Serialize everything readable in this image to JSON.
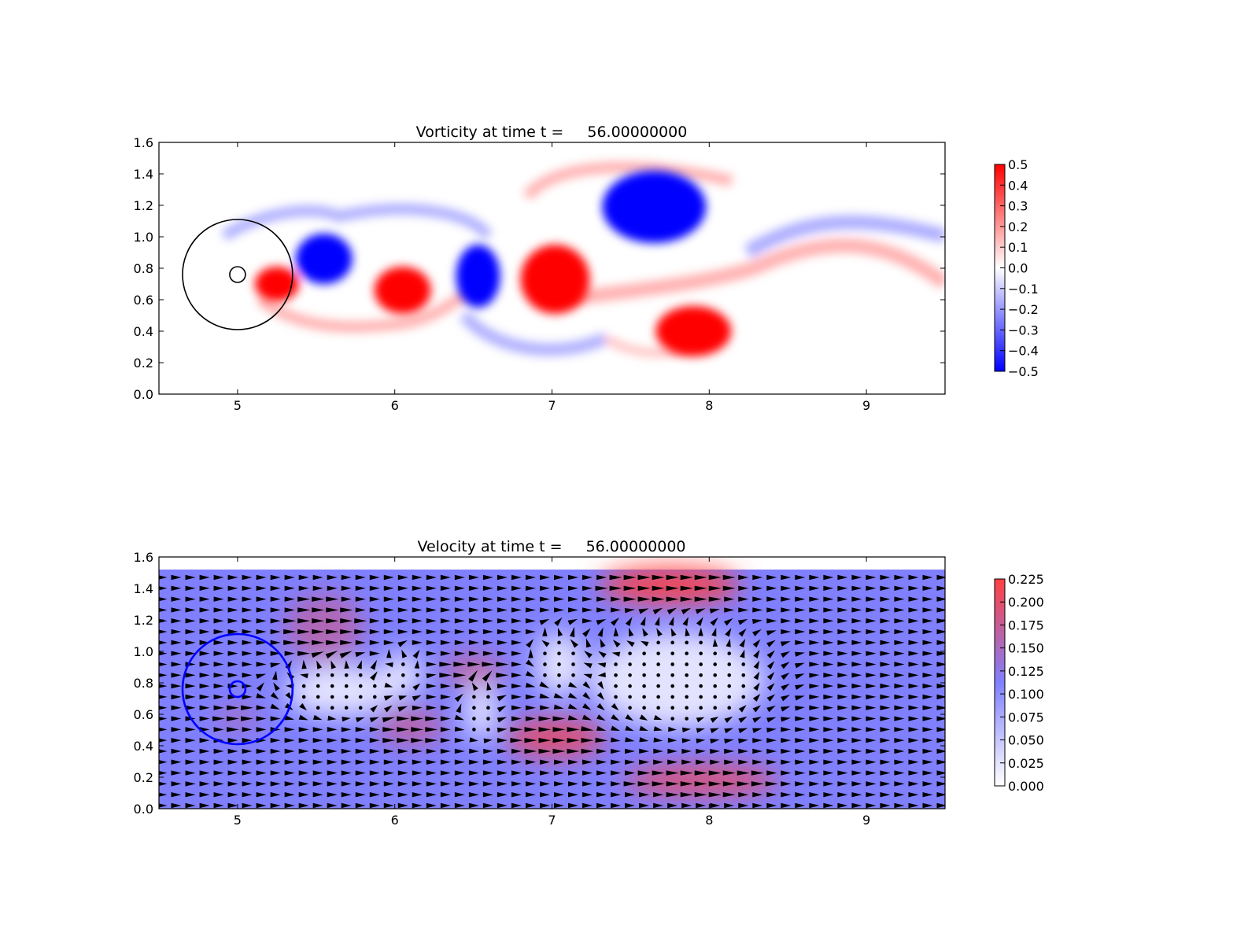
{
  "chart_data": [
    {
      "type": "heatmap",
      "title_prefix": "Vorticity at time t =",
      "time": "56.00000000",
      "xlim": [
        4.5,
        9.5
      ],
      "ylim": [
        0.0,
        1.6
      ],
      "xticks": [
        "5",
        "6",
        "7",
        "8",
        "9"
      ],
      "yticks": [
        "0.0",
        "0.2",
        "0.4",
        "0.6",
        "0.8",
        "1.0",
        "1.2",
        "1.4",
        "1.6"
      ],
      "colormap": "bwr",
      "colors": {
        "negative": "#0000ff",
        "zero": "#ffffff",
        "positive": "#ff0000"
      },
      "colorbar": {
        "range": [
          -0.5,
          0.5
        ],
        "ticks": [
          "0.5",
          "0.4",
          "0.3",
          "0.2",
          "0.1",
          "0.0",
          "−0.1",
          "−0.2",
          "−0.3",
          "−0.4",
          "−0.5"
        ],
        "tick_values": [
          0.5,
          0.4,
          0.3,
          0.2,
          0.1,
          0.0,
          -0.1,
          -0.2,
          -0.3,
          -0.4,
          -0.5
        ]
      },
      "vortices": [
        {
          "x": 5.55,
          "y": 0.86,
          "rx": 0.18,
          "ry": 0.16,
          "value": -0.5
        },
        {
          "x": 5.25,
          "y": 0.7,
          "rx": 0.14,
          "ry": 0.11,
          "value": 0.5
        },
        {
          "x": 6.05,
          "y": 0.66,
          "rx": 0.18,
          "ry": 0.15,
          "value": 0.5
        },
        {
          "x": 6.53,
          "y": 0.75,
          "rx": 0.14,
          "ry": 0.2,
          "value": -0.5
        },
        {
          "x": 7.02,
          "y": 0.73,
          "rx": 0.22,
          "ry": 0.22,
          "value": 0.5
        },
        {
          "x": 7.65,
          "y": 1.19,
          "rx": 0.33,
          "ry": 0.23,
          "value": -0.5
        },
        {
          "x": 7.9,
          "y": 0.4,
          "rx": 0.24,
          "ry": 0.16,
          "value": 0.5
        }
      ],
      "circles": [
        {
          "x": 5.0,
          "y": 0.76,
          "r": 0.35,
          "color": "#000000"
        },
        {
          "x": 5.0,
          "y": 0.76,
          "r": 0.05,
          "color": "#000000"
        }
      ]
    },
    {
      "type": "heatmap",
      "title_prefix": "Velocity at time t =",
      "time": "56.00000000",
      "xlim": [
        4.5,
        9.5
      ],
      "ylim": [
        0.0,
        1.6
      ],
      "field_ylim": [
        0.0,
        1.52
      ],
      "xticks": [
        "5",
        "6",
        "7",
        "8",
        "9"
      ],
      "yticks": [
        "0.0",
        "0.2",
        "0.4",
        "0.6",
        "0.8",
        "1.0",
        "1.2",
        "1.4",
        "1.6"
      ],
      "colormap": "white-blue-red",
      "colors": {
        "low": "#ffffff",
        "mid": "#8080ff",
        "high": "#ff4040",
        "arrow": "#000000"
      },
      "background_speed": 0.1,
      "colorbar": {
        "range": [
          0.0,
          0.225
        ],
        "ticks": [
          "0.225",
          "0.200",
          "0.175",
          "0.150",
          "0.125",
          "0.100",
          "0.075",
          "0.050",
          "0.025",
          "0.000"
        ],
        "tick_values": [
          0.225,
          0.2,
          0.175,
          0.15,
          0.125,
          0.1,
          0.075,
          0.05,
          0.025,
          0.0
        ]
      },
      "fast_regions": [
        {
          "x": 7.75,
          "y": 1.42,
          "rx": 0.45,
          "ry": 0.12,
          "speed": 0.225
        },
        {
          "x": 5.55,
          "y": 1.15,
          "rx": 0.25,
          "ry": 0.22,
          "speed": 0.16
        },
        {
          "x": 7.02,
          "y": 0.45,
          "rx": 0.32,
          "ry": 0.13,
          "speed": 0.2
        },
        {
          "x": 7.95,
          "y": 0.18,
          "rx": 0.5,
          "ry": 0.1,
          "speed": 0.2
        },
        {
          "x": 6.1,
          "y": 0.52,
          "rx": 0.22,
          "ry": 0.11,
          "speed": 0.17
        },
        {
          "x": 6.5,
          "y": 0.88,
          "rx": 0.2,
          "ry": 0.1,
          "speed": 0.17
        },
        {
          "x": 5.0,
          "y": 0.58,
          "rx": 0.14,
          "ry": 0.08,
          "speed": 0.15
        }
      ],
      "slow_regions": [
        {
          "x": 5.65,
          "y": 0.75,
          "rx": 0.35,
          "ry": 0.16,
          "speed": 0.01
        },
        {
          "x": 6.05,
          "y": 0.85,
          "rx": 0.12,
          "ry": 0.14,
          "speed": 0.01
        },
        {
          "x": 6.55,
          "y": 0.62,
          "rx": 0.1,
          "ry": 0.18,
          "speed": 0.01
        },
        {
          "x": 7.05,
          "y": 0.92,
          "rx": 0.15,
          "ry": 0.2,
          "speed": 0.01
        },
        {
          "x": 7.8,
          "y": 0.82,
          "rx": 0.55,
          "ry": 0.3,
          "speed": 0.01
        }
      ],
      "circles": [
        {
          "x": 5.0,
          "y": 0.76,
          "r": 0.35,
          "color": "#0000ff"
        },
        {
          "x": 5.0,
          "y": 0.76,
          "r": 0.05,
          "color": "#0000ff"
        }
      ]
    }
  ]
}
